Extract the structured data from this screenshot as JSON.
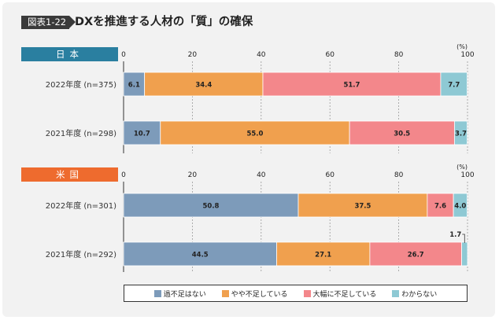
{
  "figure": {
    "tag": "図表1-22",
    "title": "DXを推進する人材の「質」の確保"
  },
  "colors": {
    "over_enough": "#7d9bba",
    "somewhat_short": "#f0a04e",
    "very_short": "#f3878b",
    "unknown": "#8ec9d4"
  },
  "chart_data": [
    {
      "type": "bar",
      "orientation": "horizontal",
      "stacked": true,
      "panel": "日本",
      "unit": "(%)",
      "xlim": [
        0,
        100
      ],
      "ticks": [
        0,
        20,
        40,
        60,
        80,
        100
      ],
      "categories": [
        "2022年度 (n=375)",
        "2021年度 (n=298)"
      ],
      "series": [
        {
          "name": "過不足はない",
          "values": [
            6.1,
            10.7
          ]
        },
        {
          "name": "やや不足している",
          "values": [
            34.4,
            55.0
          ]
        },
        {
          "name": "大幅に不足している",
          "values": [
            51.7,
            30.5
          ]
        },
        {
          "name": "わからない",
          "values": [
            7.7,
            3.7
          ]
        }
      ]
    },
    {
      "type": "bar",
      "orientation": "horizontal",
      "stacked": true,
      "panel": "米国",
      "unit": "(%)",
      "xlim": [
        0,
        100
      ],
      "ticks": [
        0,
        20,
        40,
        60,
        80,
        100
      ],
      "categories": [
        "2022年度 (n=301)",
        "2021年度 (n=292)"
      ],
      "series": [
        {
          "name": "過不足はない",
          "values": [
            50.8,
            44.5
          ]
        },
        {
          "name": "やや不足している",
          "values": [
            37.5,
            27.1
          ]
        },
        {
          "name": "大幅に不足している",
          "values": [
            7.6,
            26.7
          ]
        },
        {
          "name": "わからない",
          "values": [
            4.0,
            1.7
          ]
        }
      ]
    }
  ]
}
